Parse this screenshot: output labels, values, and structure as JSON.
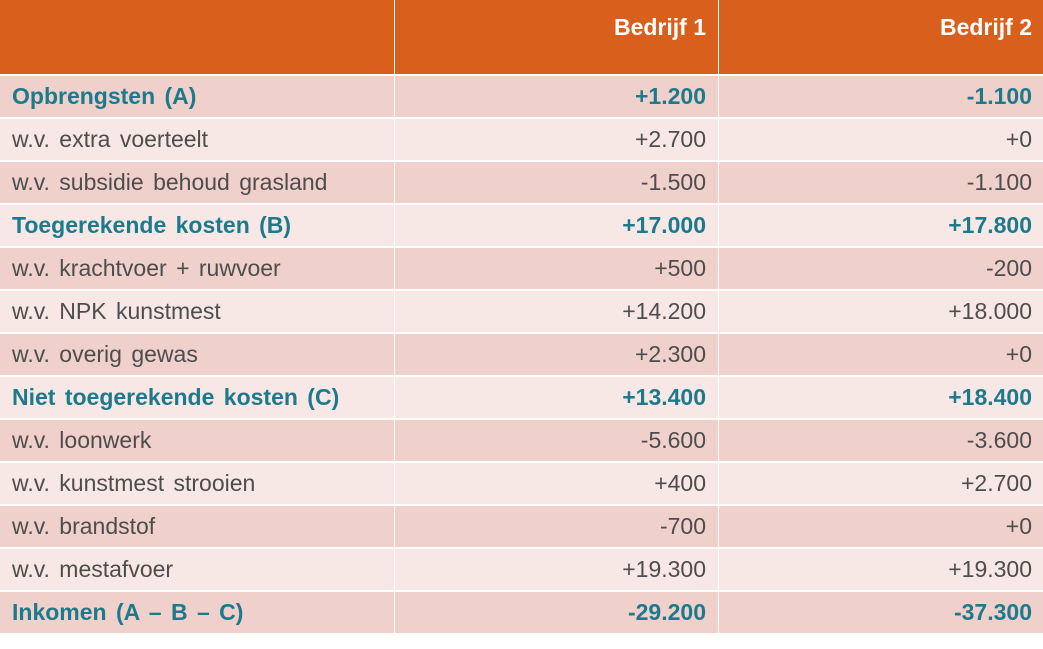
{
  "header": {
    "col0": "",
    "col1": "Bedrijf 1",
    "col2": "Bedrijf 2"
  },
  "rows": [
    {
      "label": "Opbrengsten (A)",
      "b1": "+1.200",
      "b2": "-1.100"
    },
    {
      "label": "w.v. extra voerteelt",
      "b1": "+2.700",
      "b2": "+0"
    },
    {
      "label": "w.v. subsidie behoud grasland",
      "b1": "-1.500",
      "b2": "-1.100"
    },
    {
      "label": "Toegerekende kosten (B)",
      "b1": "+17.000",
      "b2": "+17.800"
    },
    {
      "label": "w.v. krachtvoer + ruwvoer",
      "b1": "+500",
      "b2": "-200"
    },
    {
      "label": "w.v. NPK kunstmest",
      "b1": "+14.200",
      "b2": "+18.000"
    },
    {
      "label": "w.v. overig gewas",
      "b1": "+2.300",
      "b2": "+0"
    },
    {
      "label": "Niet toegerekende kosten (C)",
      "b1": "+13.400",
      "b2": "+18.400"
    },
    {
      "label": "w.v. loonwerk",
      "b1": "-5.600",
      "b2": "-3.600"
    },
    {
      "label": "w.v. kunstmest strooien",
      "b1": "+400",
      "b2": "+2.700"
    },
    {
      "label": "w.v. brandstof",
      "b1": "-700",
      "b2": "+0"
    },
    {
      "label": "w.v. mestafvoer",
      "b1": "+19.300",
      "b2": "+19.300"
    },
    {
      "label": "Inkomen (A – B – C)",
      "b1": "-29.200",
      "b2": "-37.300"
    }
  ],
  "colors": {
    "header_bg": "#d8601c",
    "header_text": "#ffffff",
    "row_dark": "#efd0cb",
    "row_light": "#f7e8e6",
    "main_text": "#1d7a8c",
    "sub_text": "#4d4d4d"
  }
}
